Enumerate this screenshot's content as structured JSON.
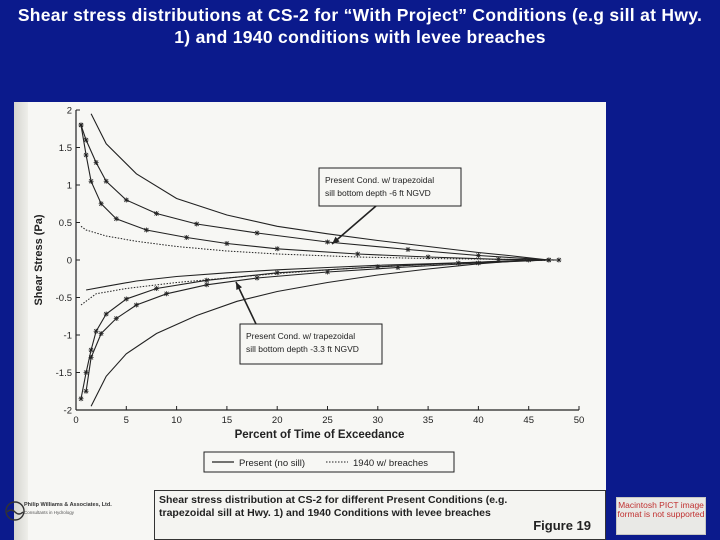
{
  "slide": {
    "title": "Shear stress distributions at CS-2 for “With Project” Conditions (e.g sill at Hwy. 1) and 1940 conditions with levee breaches"
  },
  "colors": {
    "background": "#0b1a8c",
    "title": "#ffffff",
    "paper": "#f7f7f4",
    "ink": "#222222",
    "pict_notice": "#c03030"
  },
  "chart_data": {
    "type": "line",
    "title": "",
    "xlabel": "Percent of Time of Exceedance",
    "ylabel": "Shear Stress (Pa)",
    "xlim": [
      0,
      50
    ],
    "ylim": [
      -2,
      2
    ],
    "xticks": [
      "0",
      "5",
      "10",
      "15",
      "20",
      "25",
      "30",
      "35",
      "40",
      "45",
      "50"
    ],
    "yticks": [
      "2",
      "1.5",
      "1",
      "0.5",
      "0",
      "-0.5",
      "-1",
      "-1.5",
      "-2"
    ],
    "grid": false,
    "legend_position": "bottom",
    "legend": [
      {
        "label": "Present (no sill)",
        "style": "solid"
      },
      {
        "label": "1940 w/ breaches",
        "style": "dotted"
      }
    ],
    "series": [
      {
        "style": "solid",
        "x": [
          1.5,
          3,
          6,
          10,
          15,
          20,
          25,
          30,
          35,
          40,
          43,
          45,
          47
        ],
        "y": [
          1.95,
          1.55,
          1.15,
          0.82,
          0.6,
          0.45,
          0.35,
          0.26,
          0.18,
          0.1,
          0.06,
          0.03,
          0.0
        ]
      },
      {
        "style": "solid-asterisk",
        "x": [
          0.5,
          1,
          2,
          3,
          5,
          8,
          12,
          18,
          25,
          33,
          40,
          47
        ],
        "y": [
          1.8,
          1.6,
          1.3,
          1.05,
          0.8,
          0.62,
          0.48,
          0.36,
          0.24,
          0.14,
          0.06,
          0.0
        ]
      },
      {
        "style": "solid-asterisk",
        "x": [
          0.5,
          1,
          1.5,
          2.5,
          4,
          7,
          11,
          15,
          20,
          28,
          35,
          42,
          48
        ],
        "y": [
          1.8,
          1.4,
          1.05,
          0.75,
          0.55,
          0.4,
          0.3,
          0.22,
          0.15,
          0.08,
          0.04,
          0.01,
          0.0
        ]
      },
      {
        "style": "dotted",
        "x": [
          0.5,
          1,
          3,
          6,
          10,
          15,
          20,
          28,
          35,
          42,
          48
        ],
        "y": [
          0.45,
          0.4,
          0.32,
          0.25,
          0.18,
          0.12,
          0.08,
          0.04,
          0.02,
          0.01,
          0.0
        ]
      },
      {
        "style": "solid",
        "x": [
          1,
          3,
          6,
          10,
          15,
          20,
          25,
          30,
          35,
          40,
          45,
          47
        ],
        "y": [
          -0.4,
          -0.35,
          -0.28,
          -0.22,
          -0.17,
          -0.13,
          -0.1,
          -0.07,
          -0.05,
          -0.03,
          -0.01,
          0.0
        ]
      },
      {
        "style": "dotted",
        "x": [
          0.5,
          2,
          5,
          10,
          15,
          20,
          25,
          30,
          35,
          40,
          45,
          48
        ],
        "y": [
          -0.6,
          -0.45,
          -0.38,
          -0.3,
          -0.24,
          -0.18,
          -0.13,
          -0.09,
          -0.06,
          -0.03,
          -0.01,
          0.0
        ]
      },
      {
        "style": "solid-asterisk",
        "x": [
          1,
          1.5,
          2.5,
          4,
          6,
          9,
          13,
          18,
          25,
          32,
          40,
          47
        ],
        "y": [
          -1.75,
          -1.3,
          -0.98,
          -0.78,
          -0.6,
          -0.45,
          -0.33,
          -0.24,
          -0.16,
          -0.1,
          -0.04,
          0.0
        ]
      },
      {
        "style": "solid-asterisk",
        "x": [
          0.5,
          1,
          1.5,
          2,
          3,
          5,
          8,
          13,
          20,
          30,
          38,
          45
        ],
        "y": [
          -1.85,
          -1.5,
          -1.2,
          -0.95,
          -0.72,
          -0.52,
          -0.38,
          -0.27,
          -0.17,
          -0.09,
          -0.04,
          0.0
        ]
      },
      {
        "style": "solid",
        "x": [
          1.5,
          3,
          5,
          8,
          12,
          16,
          20,
          25,
          30,
          35,
          40,
          45
        ],
        "y": [
          -1.95,
          -1.55,
          -1.25,
          -0.98,
          -0.74,
          -0.55,
          -0.42,
          -0.3,
          -0.2,
          -0.12,
          -0.05,
          0.0
        ]
      }
    ],
    "annotations": [
      {
        "text": "Present Cond. w/ trapezoidal sill bottom depth -6 ft NGVD"
      },
      {
        "text": "Present Cond. w/ trapezoidal sill bottom depth -3.3 ft NGVD"
      }
    ]
  },
  "figure": {
    "caption": "Shear stress distribution at CS-2 for different Present Conditions (e.g. trapezoidal sill at Hwy. 1) and 1940 Conditions with levee breaches",
    "label": "Figure 19",
    "logo_name": "Philip Williams & Associates, Ltd.",
    "logo_sub": "Consultants in Hydrology"
  },
  "notice": {
    "text": "Macintosh PICT image format is not supported"
  }
}
